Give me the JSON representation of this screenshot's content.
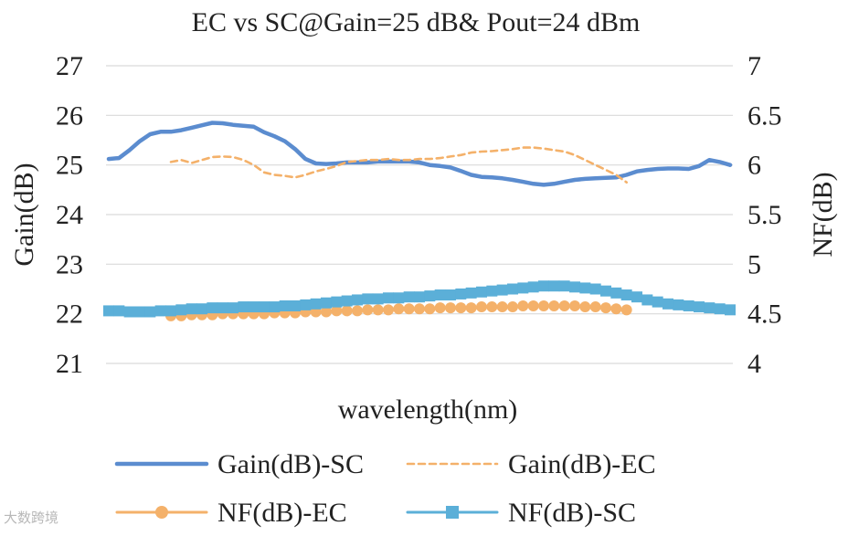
{
  "chart_data": {
    "type": "line",
    "title": "EC vs SC@Gain=25 dB& Pout=24 dBm",
    "xlabel": "wavelength(nm)",
    "ylabel": "Gain(dB)",
    "y2label": "NF(dB)",
    "ylim": [
      21,
      27
    ],
    "y2lim": [
      4,
      7
    ],
    "yticks": [
      "21",
      "22",
      "23",
      "24",
      "25",
      "26",
      "27"
    ],
    "y2ticks": [
      "4",
      "4.5",
      "5",
      "5.5",
      "6",
      "6.5",
      "7"
    ],
    "grid": true,
    "legend_position": "bottom",
    "x_count": 61,
    "series": [
      {
        "name": "Gain(dB)-SC",
        "axis": "left",
        "color": "#5b8ccf",
        "style": "solid",
        "x_start": 0,
        "values": [
          25.12,
          25.14,
          25.3,
          25.48,
          25.62,
          25.67,
          25.67,
          25.7,
          25.75,
          25.8,
          25.85,
          25.84,
          25.81,
          25.79,
          25.77,
          25.66,
          25.58,
          25.48,
          25.32,
          25.12,
          25.03,
          25.02,
          25.03,
          25.05,
          25.05,
          25.05,
          25.07,
          25.07,
          25.07,
          25.07,
          25.05,
          25.0,
          24.98,
          24.95,
          24.88,
          24.8,
          24.76,
          24.75,
          24.73,
          24.7,
          24.66,
          24.62,
          24.6,
          24.62,
          24.66,
          24.7,
          24.72,
          24.73,
          24.74,
          24.75,
          24.8,
          24.87,
          24.9,
          24.92,
          24.93,
          24.93,
          24.92,
          24.98,
          25.1,
          25.06,
          25.0
        ]
      },
      {
        "name": "Gain(dB)-EC",
        "axis": "left",
        "color": "#f4b16a",
        "style": "dashed",
        "x_start": 6,
        "values": [
          25.06,
          25.1,
          25.04,
          25.1,
          25.16,
          25.17,
          25.16,
          25.1,
          25.0,
          24.85,
          24.8,
          24.78,
          24.75,
          24.8,
          24.87,
          24.92,
          24.98,
          25.06,
          25.08,
          25.1,
          25.1,
          25.12,
          25.1,
          25.1,
          25.12,
          25.12,
          25.14,
          25.17,
          25.2,
          25.25,
          25.27,
          25.28,
          25.3,
          25.32,
          25.35,
          25.35,
          25.33,
          25.3,
          25.27,
          25.2,
          25.1,
          25.0,
          24.9,
          24.8,
          24.65
        ]
      },
      {
        "name": "NF(dB)-EC",
        "axis": "right",
        "color": "#f4b16a",
        "style": "solid-circle",
        "x_start": 6,
        "values": [
          4.48,
          4.48,
          4.49,
          4.49,
          4.49,
          4.5,
          4.5,
          4.5,
          4.5,
          4.5,
          4.51,
          4.51,
          4.51,
          4.52,
          4.52,
          4.52,
          4.53,
          4.53,
          4.53,
          4.54,
          4.54,
          4.54,
          4.55,
          4.55,
          4.55,
          4.55,
          4.56,
          4.56,
          4.56,
          4.56,
          4.57,
          4.57,
          4.57,
          4.57,
          4.58,
          4.58,
          4.58,
          4.58,
          4.58,
          4.58,
          4.57,
          4.57,
          4.56,
          4.55,
          4.54
        ]
      },
      {
        "name": "NF(dB)-SC",
        "axis": "right",
        "color": "#5bafd8",
        "style": "solid-square",
        "x_start": 0,
        "values": [
          4.53,
          4.53,
          4.52,
          4.52,
          4.52,
          4.53,
          4.53,
          4.54,
          4.55,
          4.55,
          4.56,
          4.56,
          4.56,
          4.57,
          4.57,
          4.57,
          4.57,
          4.58,
          4.58,
          4.59,
          4.6,
          4.61,
          4.62,
          4.63,
          4.64,
          4.65,
          4.65,
          4.66,
          4.66,
          4.67,
          4.67,
          4.68,
          4.69,
          4.69,
          4.7,
          4.71,
          4.72,
          4.73,
          4.74,
          4.75,
          4.76,
          4.77,
          4.78,
          4.78,
          4.78,
          4.77,
          4.76,
          4.75,
          4.73,
          4.71,
          4.69,
          4.67,
          4.64,
          4.62,
          4.6,
          4.59,
          4.58,
          4.57,
          4.56,
          4.55,
          4.54
        ]
      }
    ]
  },
  "watermark": "大数跨境"
}
